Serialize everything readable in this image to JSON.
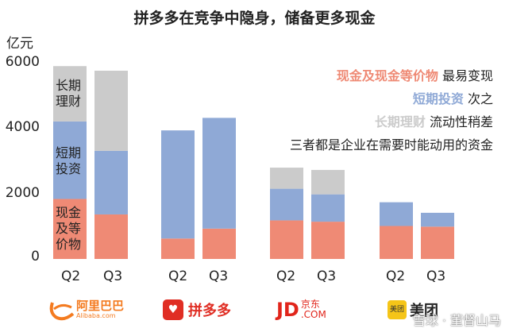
{
  "title": "拼多多在竞争中隐身，储备更多现金",
  "unit": "亿元",
  "colors": {
    "cash": "#ef8a75",
    "short": "#8fa9d6",
    "long": "#cbcbcb"
  },
  "chart_data": {
    "type": "bar",
    "stacked": true,
    "ylim": [
      0,
      6000
    ],
    "yticks": [
      "0",
      "2000",
      "4000",
      "6000"
    ],
    "groups": [
      "阿里巴巴",
      "拼多多",
      "京东",
      "美团"
    ],
    "categories": [
      "Q2",
      "Q3"
    ],
    "series": [
      {
        "name": "现金及现金等价物",
        "values": [
          [
            1820,
            1350
          ],
          [
            620,
            920
          ],
          [
            1170,
            1130
          ],
          [
            1000,
            980
          ]
        ]
      },
      {
        "name": "短期投资",
        "values": [
          [
            2350,
            1930
          ],
          [
            3280,
            3360
          ],
          [
            960,
            830
          ],
          [
            720,
            420
          ]
        ]
      },
      {
        "name": "长期理财",
        "values": [
          [
            1680,
            2430
          ],
          [
            0,
            0
          ],
          [
            640,
            740
          ],
          [
            0,
            0
          ]
        ]
      }
    ]
  },
  "segment_labels": {
    "long": "长期\n理财",
    "short": "短期\n投资",
    "cash": "现金\n及等\n价物"
  },
  "legend": [
    {
      "highlight": "现金及现金等价物",
      "text": " 最易变现",
      "color": "#ef8a75"
    },
    {
      "highlight": "短期投资",
      "text": " 次之",
      "color": "#8fa9d6"
    },
    {
      "highlight": "长期理财",
      "text": " 流动性稍差",
      "color": "#cbcbcb"
    },
    {
      "highlight": "",
      "text": "三者都是企业在需要时能动用的资金",
      "color": "#222222"
    }
  ],
  "logos": {
    "alibaba": {
      "name": "阿里巴巴",
      "sub": "Alibaba.com"
    },
    "pdd": {
      "name": "拼多多",
      "icon": "♥"
    },
    "jd": {
      "name": "JD",
      "cn": "京东",
      "sub": ".COM"
    },
    "meituan": {
      "icon": "美团",
      "name": "美团"
    }
  },
  "watermark": "雪球 · 董督山马"
}
